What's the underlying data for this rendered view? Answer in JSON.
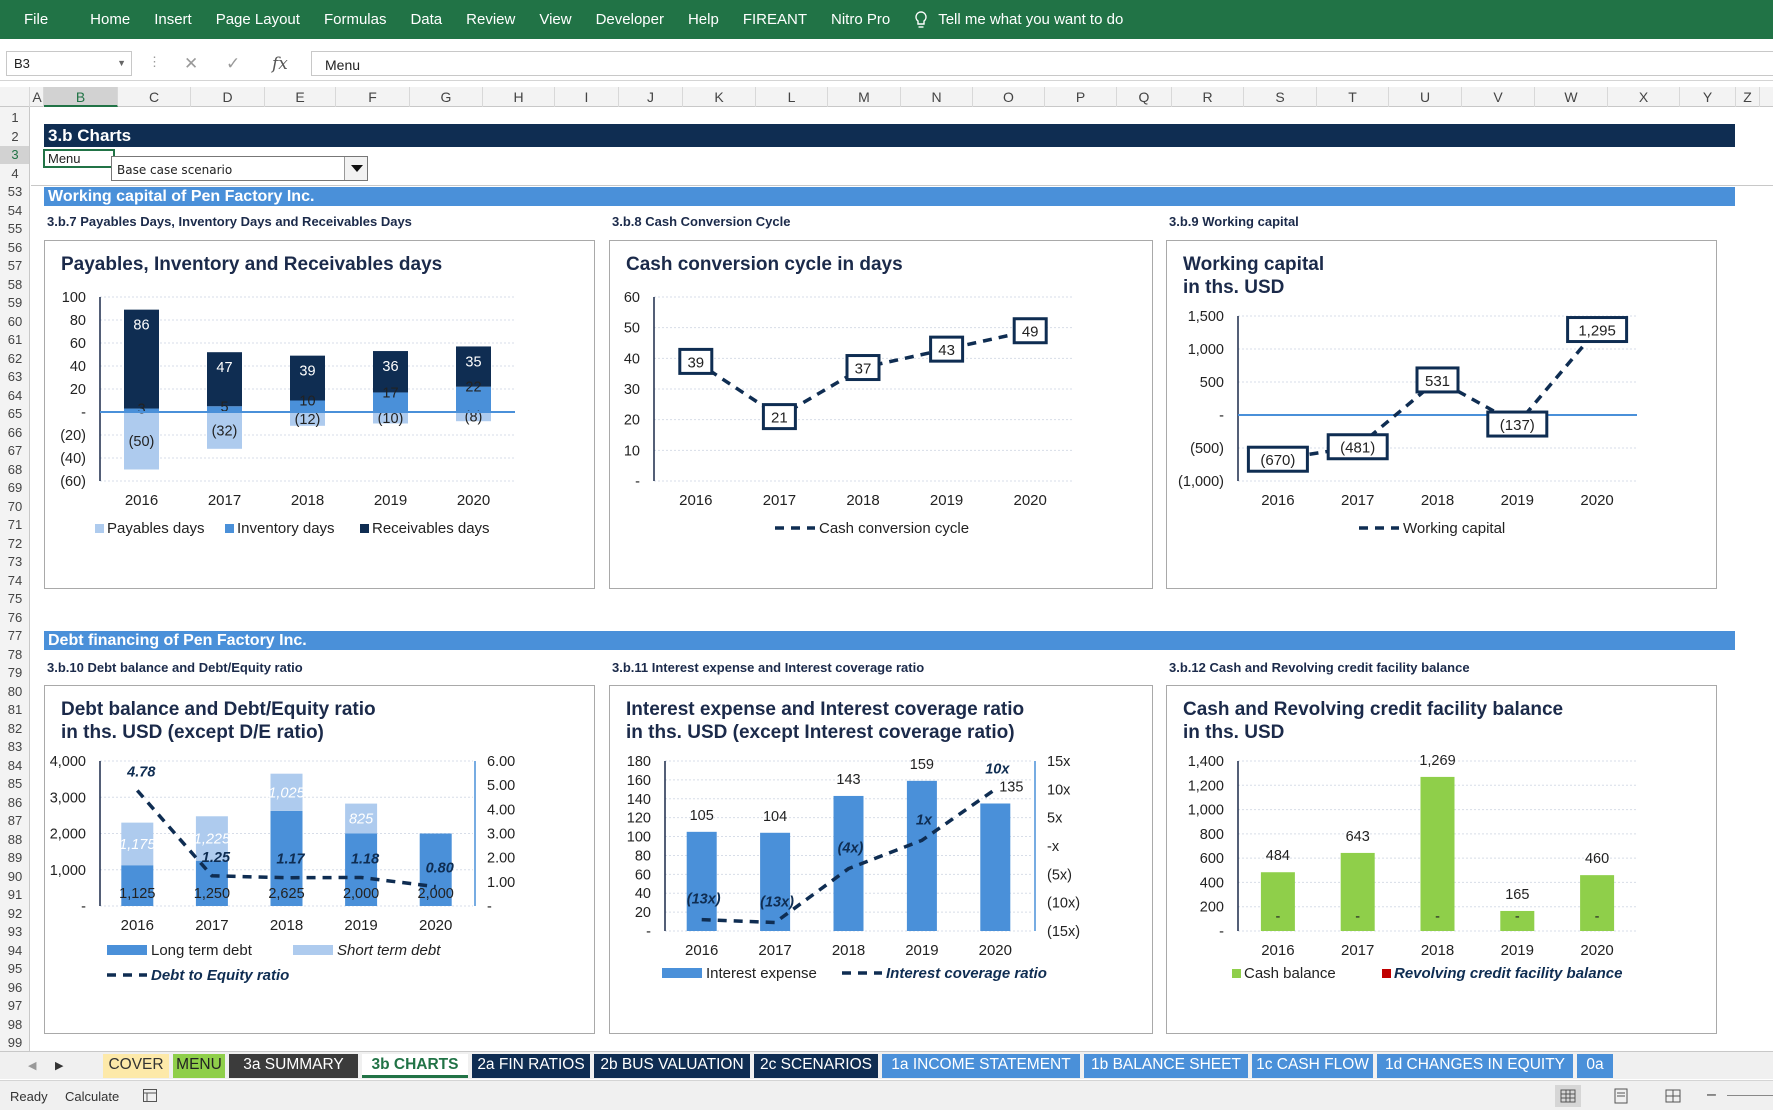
{
  "ribbon_tabs": [
    "File",
    "Home",
    "Insert",
    "Page Layout",
    "Formulas",
    "Data",
    "Review",
    "View",
    "Developer",
    "Help",
    "FIREANT",
    "Nitro Pro"
  ],
  "tell_me": "Tell me what you want to do",
  "name_box": "B3",
  "formula_value": "Menu",
  "columns": [
    {
      "label": "A",
      "w": 13
    },
    {
      "label": "B",
      "w": 74
    },
    {
      "label": "C",
      "w": 73
    },
    {
      "label": "D",
      "w": 74
    },
    {
      "label": "E",
      "w": 71
    },
    {
      "label": "F",
      "w": 74
    },
    {
      "label": "G",
      "w": 73
    },
    {
      "label": "H",
      "w": 72
    },
    {
      "label": "I",
      "w": 64
    },
    {
      "label": "J",
      "w": 64
    },
    {
      "label": "K",
      "w": 73
    },
    {
      "label": "L",
      "w": 72
    },
    {
      "label": "M",
      "w": 73
    },
    {
      "label": "N",
      "w": 72
    },
    {
      "label": "O",
      "w": 72
    },
    {
      "label": "P",
      "w": 72
    },
    {
      "label": "Q",
      "w": 55
    },
    {
      "label": "R",
      "w": 72
    },
    {
      "label": "S",
      "w": 73
    },
    {
      "label": "T",
      "w": 72
    },
    {
      "label": "U",
      "w": 73
    },
    {
      "label": "V",
      "w": 73
    },
    {
      "label": "W",
      "w": 73
    },
    {
      "label": "X",
      "w": 72
    },
    {
      "label": "Y",
      "w": 56
    },
    {
      "label": "Z",
      "w": 24
    }
  ],
  "selected_column": "B",
  "rows": [
    "1",
    "2",
    "3",
    "4",
    "53",
    "54",
    "55",
    "56",
    "57",
    "58",
    "59",
    "60",
    "61",
    "62",
    "63",
    "64",
    "65",
    "66",
    "67",
    "68",
    "69",
    "70",
    "71",
    "72",
    "73",
    "74",
    "75",
    "76",
    "77",
    "78",
    "79",
    "80",
    "81",
    "82",
    "83",
    "84",
    "85",
    "86",
    "87",
    "88",
    "89",
    "90",
    "91",
    "92",
    "93",
    "94",
    "95",
    "96",
    "97",
    "98",
    "99"
  ],
  "selected_row": "3",
  "header_title": "3.b Charts",
  "menu_cell": "Menu",
  "scenario": "Base case scenario",
  "sections": [
    {
      "title": "Working capital of Pen Factory Inc."
    },
    {
      "title": "Debt financing of Pen Factory Inc."
    }
  ],
  "colors": {
    "ribbon": "#217346",
    "navy": "#0f2d52",
    "band": "#4a90d9",
    "light_blue": "#aecbee",
    "mid_blue": "#4a90d9",
    "green": "#8fcf4a",
    "red": "#c00000",
    "grid": "#d7dde8"
  },
  "charts": [
    {
      "section_label": "3.b.7 Payables Days, Inventory Days and Receivables Days",
      "title": "Payables, Inventory and Receivables days"
    },
    {
      "section_label": "3.b.8 Cash Conversion Cycle",
      "title": "Cash conversion cycle in days"
    },
    {
      "section_label": "3.b.9 Working capital",
      "title": "Working capital\nin ths. USD"
    },
    {
      "section_label": "3.b.10 Debt balance and Debt/Equity ratio",
      "title": "Debt balance and Debt/Equity ratio\nin ths. USD (except D/E ratio)"
    },
    {
      "section_label": "3.b.11 Interest expense and Interest coverage ratio",
      "title": "Interest expense and Interest coverage ratio\nin ths. USD (except Interest coverage ratio)"
    },
    {
      "section_label": "3.b.12 Cash and Revolving credit facility balance",
      "title": "Cash and Revolving credit facility balance\nin ths. USD"
    }
  ],
  "chart_data": [
    {
      "type": "bar",
      "stacked": true,
      "categories": [
        "2016",
        "2017",
        "2018",
        "2019",
        "2020"
      ],
      "series": [
        {
          "name": "Payables days",
          "values": [
            -50,
            -32,
            -12,
            -10,
            -8
          ],
          "labels": [
            "(50)",
            "(32)",
            "(12)",
            "(10)",
            "(8)"
          ]
        },
        {
          "name": "Inventory days",
          "values": [
            3,
            5,
            10,
            17,
            22
          ],
          "labels": [
            "3",
            "5",
            "10",
            "17",
            "22"
          ]
        },
        {
          "name": "Receivables days",
          "values": [
            86,
            47,
            39,
            36,
            35
          ],
          "labels": [
            "86",
            "47",
            "39",
            "36",
            "35"
          ]
        }
      ],
      "ylim": [
        -60,
        100
      ],
      "yticks": [
        -60,
        -40,
        -20,
        0,
        20,
        40,
        60,
        80,
        100
      ],
      "ytick_labels": [
        "(60)",
        "(40)",
        "(20)",
        "-",
        "20",
        "40",
        "60",
        "80",
        "100"
      ],
      "legend": "bottom",
      "grid": true
    },
    {
      "type": "line",
      "categories": [
        "2016",
        "2017",
        "2018",
        "2019",
        "2020"
      ],
      "series": [
        {
          "name": "Cash conversion cycle",
          "values": [
            39,
            21,
            37,
            43,
            49
          ],
          "labels": [
            "39",
            "21",
            "37",
            "43",
            "49"
          ]
        }
      ],
      "ylim": [
        0,
        60
      ],
      "yticks": [
        0,
        10,
        20,
        30,
        40,
        50,
        60
      ],
      "ytick_labels": [
        "-",
        "10",
        "20",
        "30",
        "40",
        "50",
        "60"
      ],
      "legend": "bottom",
      "grid": true
    },
    {
      "type": "line",
      "categories": [
        "2016",
        "2017",
        "2018",
        "2019",
        "2020"
      ],
      "series": [
        {
          "name": "Working capital",
          "values": [
            -670,
            -481,
            531,
            -137,
            1295
          ],
          "labels": [
            "(670)",
            "(481)",
            "531",
            "(137)",
            "1,295"
          ]
        }
      ],
      "ylim": [
        -1000,
        1500
      ],
      "yticks": [
        -1000,
        -500,
        0,
        500,
        1000,
        1500
      ],
      "ytick_labels": [
        "(1,000)",
        "(500)",
        "-",
        "500",
        "1,000",
        "1,500"
      ],
      "legend": "bottom",
      "grid": true
    },
    {
      "type": "bar",
      "stacked": true,
      "categories": [
        "2016",
        "2017",
        "2018",
        "2019",
        "2020"
      ],
      "series": [
        {
          "name": "Long term debt",
          "values": [
            1125,
            1250,
            2625,
            2000,
            2000
          ],
          "labels": [
            "1,125",
            "1,250",
            "2,625",
            "2,000",
            "2,000"
          ]
        },
        {
          "name": "Short term debt",
          "values": [
            1175,
            1225,
            1025,
            825,
            0
          ],
          "labels": [
            "1,175",
            "1,225",
            "1,025",
            "825",
            ""
          ]
        },
        {
          "name": "Debt to Equity ratio",
          "type": "line",
          "axis": "right",
          "values": [
            4.78,
            1.25,
            1.17,
            1.18,
            0.8
          ],
          "labels": [
            "4.78",
            "1.25",
            "1.17",
            "1.18",
            "0.80"
          ]
        }
      ],
      "ylim": [
        0,
        4000
      ],
      "yticks": [
        0,
        1000,
        2000,
        3000,
        4000
      ],
      "ytick_labels": [
        "-",
        "1,000",
        "2,000",
        "3,000",
        "4,000"
      ],
      "y2lim": [
        0,
        6
      ],
      "y2ticks": [
        0,
        1,
        2,
        3,
        4,
        5,
        6
      ],
      "y2tick_labels": [
        "-",
        "1.00",
        "2.00",
        "3.00",
        "4.00",
        "5.00",
        "6.00"
      ],
      "legend": "bottom",
      "grid": true
    },
    {
      "type": "bar",
      "categories": [
        "2016",
        "2017",
        "2018",
        "2019",
        "2020"
      ],
      "series": [
        {
          "name": "Interest expense",
          "values": [
            105,
            104,
            143,
            159,
            135
          ],
          "labels": [
            "105",
            "104",
            "143",
            "159",
            "135"
          ]
        },
        {
          "name": "Interest coverage ratio",
          "type": "line",
          "axis": "right",
          "values": [
            -13,
            -13.5,
            -4,
            1,
            10
          ],
          "labels": [
            "(13x)",
            "(13x)",
            "(4x)",
            "1x",
            "10x"
          ]
        }
      ],
      "ylim": [
        0,
        180
      ],
      "yticks": [
        0,
        20,
        40,
        60,
        80,
        100,
        120,
        140,
        160,
        180
      ],
      "ytick_labels": [
        "-",
        "20",
        "40",
        "60",
        "80",
        "100",
        "120",
        "140",
        "160",
        "180"
      ],
      "y2lim": [
        -15,
        15
      ],
      "y2ticks": [
        -15,
        -10,
        -5,
        0,
        5,
        10,
        15
      ],
      "y2tick_labels": [
        "(15x)",
        "(10x)",
        "(5x)",
        "-x",
        "5x",
        "10x",
        "15x"
      ],
      "legend": "bottom",
      "grid": true
    },
    {
      "type": "bar",
      "categories": [
        "2016",
        "2017",
        "2018",
        "2019",
        "2020"
      ],
      "series": [
        {
          "name": "Cash balance",
          "values": [
            484,
            643,
            1269,
            165,
            460
          ],
          "labels": [
            "484",
            "643",
            "1,269",
            "165",
            "460"
          ]
        },
        {
          "name": "Revolving credit facility balance",
          "values": [
            0,
            0,
            0,
            0,
            0
          ],
          "labels": [
            "-",
            "-",
            "-",
            "-",
            "-"
          ]
        }
      ],
      "ylim": [
        0,
        1400
      ],
      "yticks": [
        0,
        200,
        400,
        600,
        800,
        1000,
        1200,
        1400
      ],
      "ytick_labels": [
        "-",
        "200",
        "400",
        "600",
        "800",
        "1,000",
        "1,200",
        "1,400"
      ],
      "legend": "bottom",
      "grid": true
    }
  ],
  "sheet_tabs": [
    {
      "label": "COVER",
      "bg": "#fde9a9",
      "fg": "#333"
    },
    {
      "label": "MENU",
      "bg": "#8fcf4a",
      "fg": "#222"
    },
    {
      "label": "3a SUMMARY",
      "bg": "#3b3b3b",
      "fg": "#fff"
    },
    {
      "label": "3b CHARTS",
      "bg": "#ffffff",
      "fg": "#217346",
      "active": true
    },
    {
      "label": "2a FIN RATIOS",
      "bg": "#0f2d52",
      "fg": "#fff"
    },
    {
      "label": "2b BUS VALUATION",
      "bg": "#0f2d52",
      "fg": "#fff"
    },
    {
      "label": "2c SCENARIOS",
      "bg": "#0f2d52",
      "fg": "#fff"
    },
    {
      "label": "1a INCOME STATEMENT",
      "bg": "#4a90d9",
      "fg": "#fff"
    },
    {
      "label": "1b BALANCE SHEET",
      "bg": "#4a90d9",
      "fg": "#fff"
    },
    {
      "label": "1c CASH FLOW",
      "bg": "#4a90d9",
      "fg": "#fff"
    },
    {
      "label": "1d CHANGES IN EQUITY",
      "bg": "#4a90d9",
      "fg": "#fff"
    },
    {
      "label": "0a",
      "bg": "#4a90d9",
      "fg": "#fff"
    }
  ],
  "status": {
    "ready": "Ready",
    "calculate": "Calculate"
  }
}
